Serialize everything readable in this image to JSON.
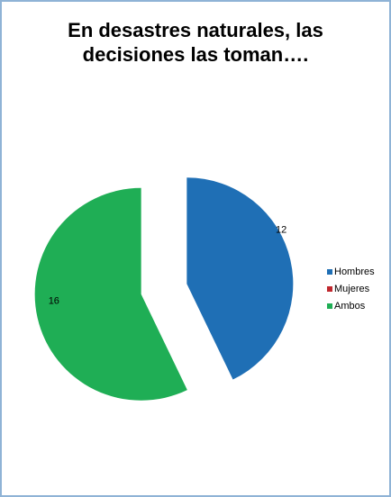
{
  "chart_data": {
    "type": "pie",
    "title_lines": [
      "En desastres naturales, las",
      "decisiones las toman…."
    ],
    "categories": [
      "Hombres",
      "Mujeres",
      "Ambos"
    ],
    "values": [
      12,
      0,
      16
    ],
    "data_labels": [
      "12",
      "",
      "16"
    ],
    "colors": [
      "#1f6fb5",
      "#c0282e",
      "#1fae55"
    ],
    "exploded": true,
    "legend_position": "right"
  }
}
